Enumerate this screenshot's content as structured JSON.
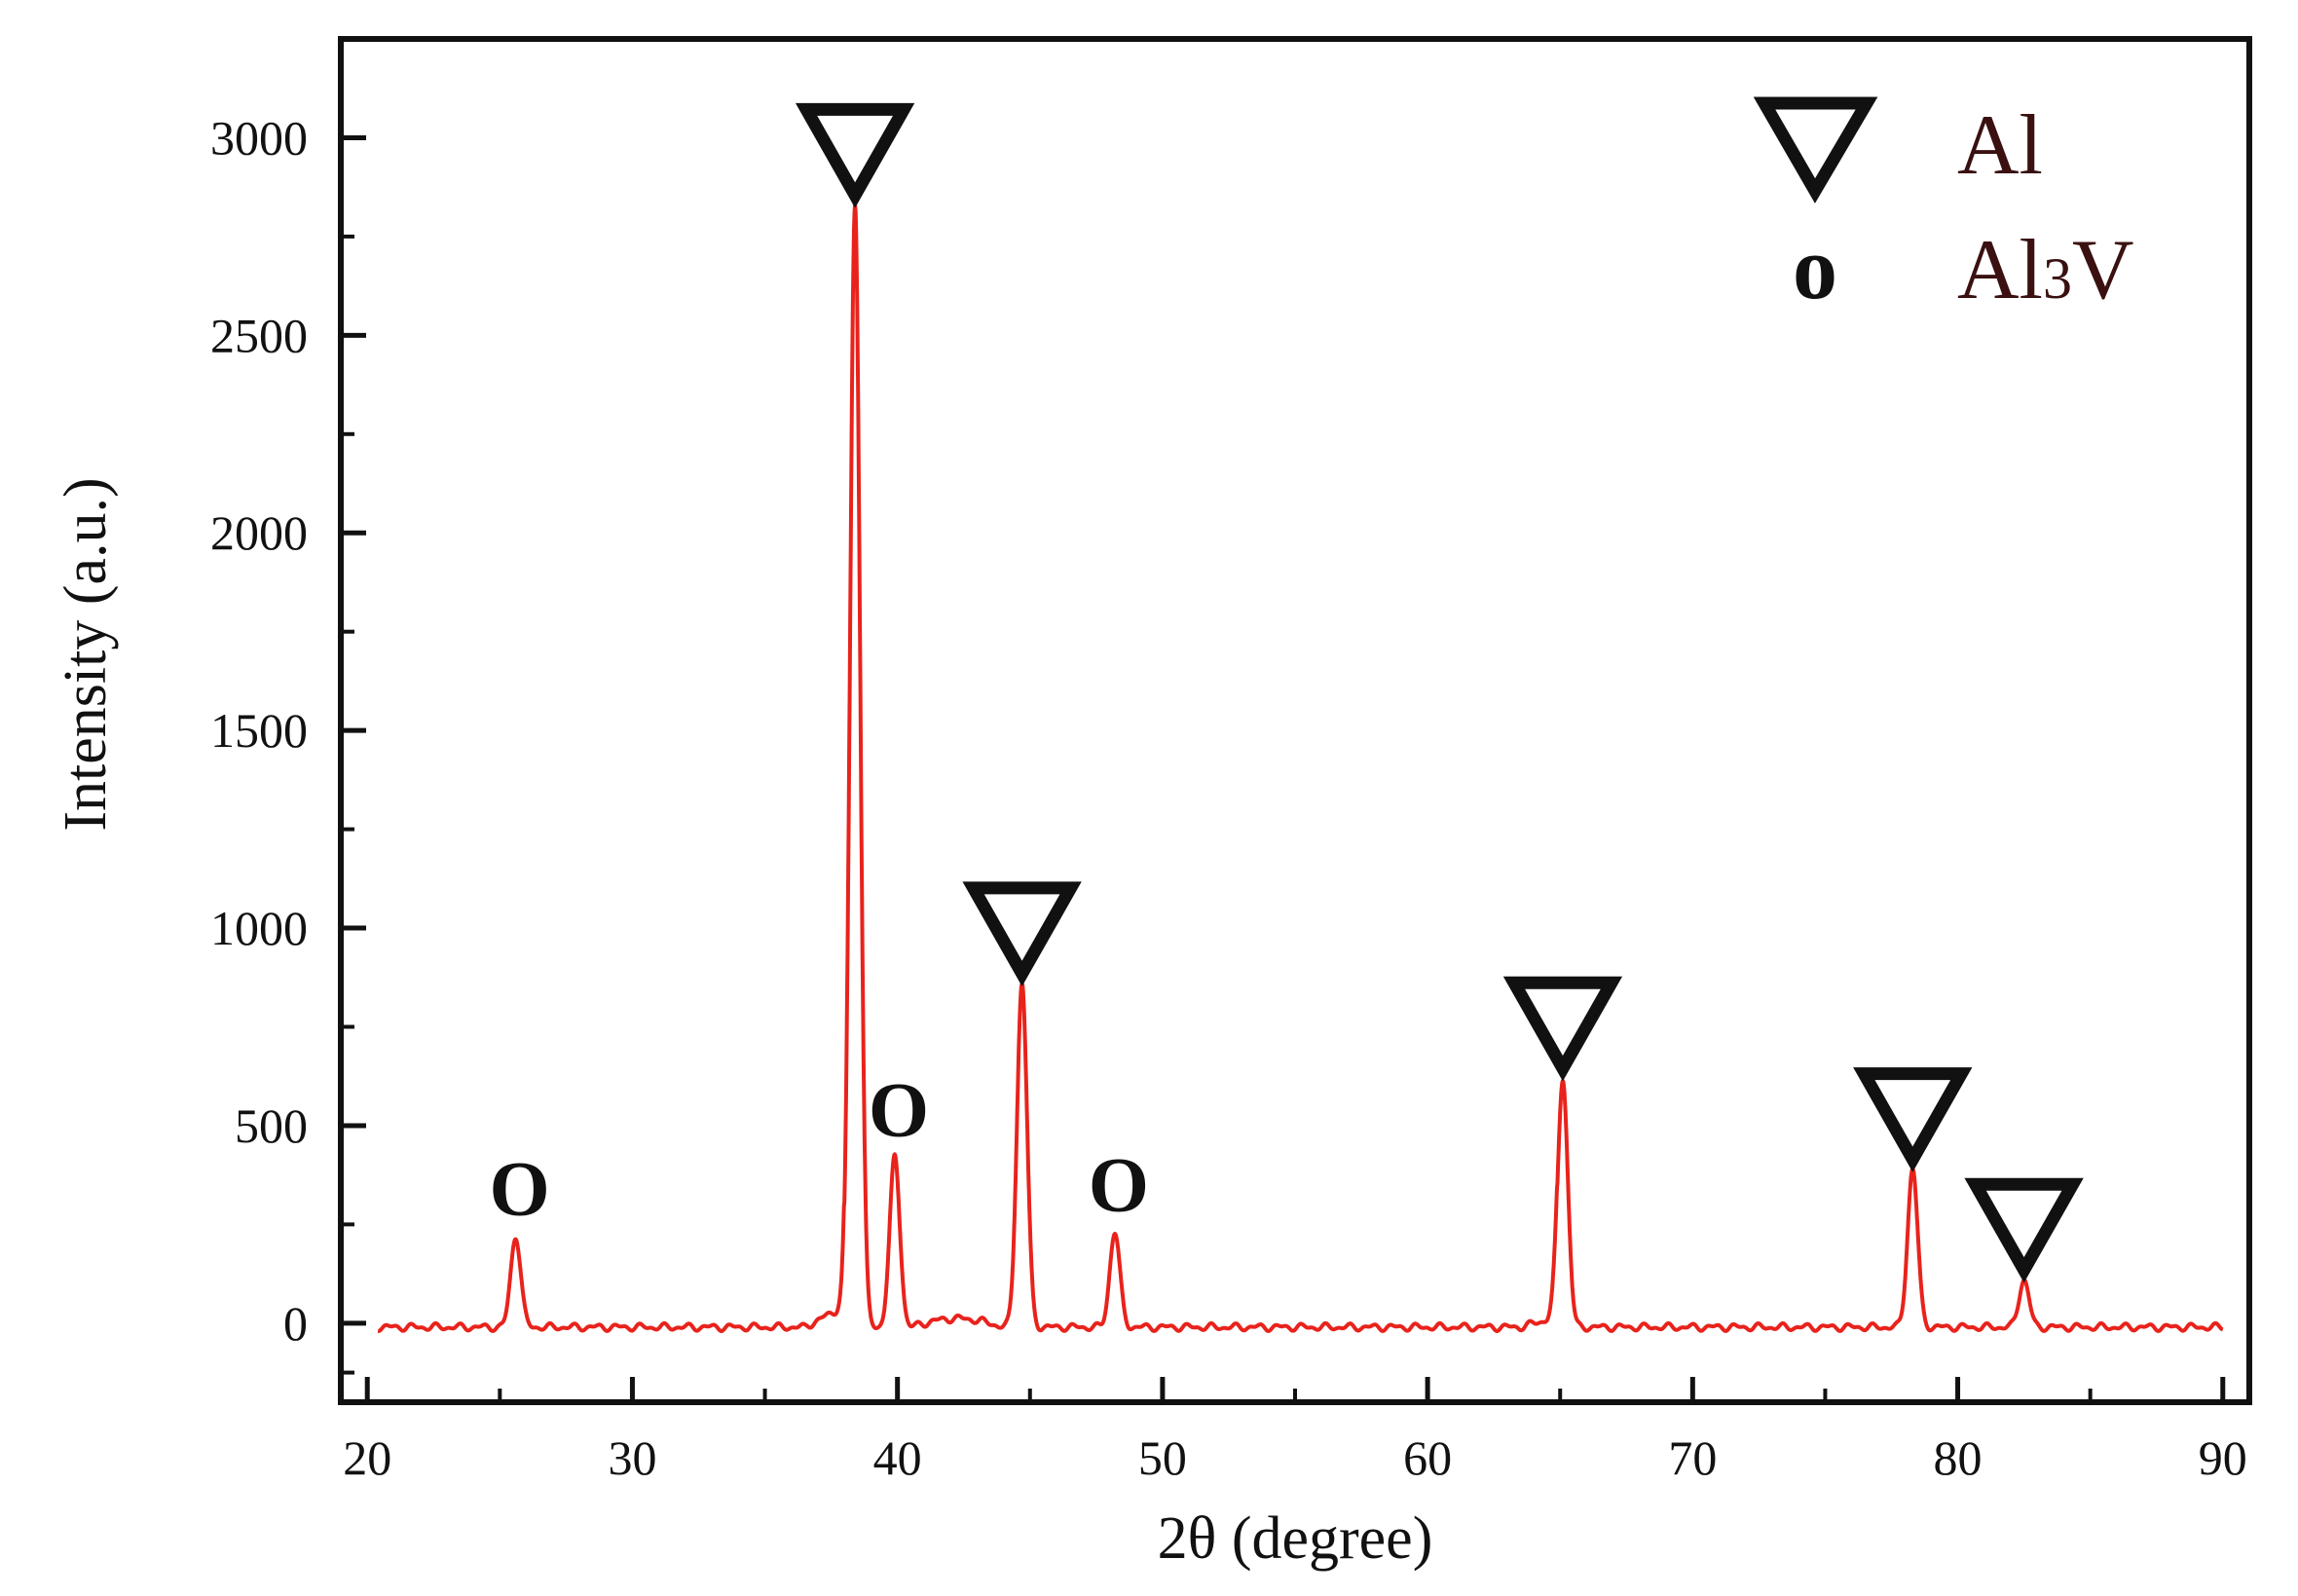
{
  "chart_data": {
    "type": "line",
    "title": "",
    "xlabel": "2θ (degree)",
    "ylabel": "Intensity (a.u.)",
    "xlim": [
      19,
      91
    ],
    "ylim": [
      -200,
      3250
    ],
    "xticks": [
      20,
      30,
      40,
      50,
      60,
      70,
      80,
      90
    ],
    "yticks": [
      0,
      500,
      1000,
      1500,
      2000,
      2500,
      3000
    ],
    "grid": false,
    "line_color": "#e8231c",
    "series": [
      {
        "name": "",
        "baseline": -10,
        "peaks": [
          {
            "x": 25.6,
            "y": 220
          },
          {
            "x": 38.4,
            "y": 2830
          },
          {
            "x": 39.9,
            "y": 420
          },
          {
            "x": 44.7,
            "y": 860
          },
          {
            "x": 48.2,
            "y": 230
          },
          {
            "x": 65.1,
            "y": 620
          },
          {
            "x": 78.3,
            "y": 390
          },
          {
            "x": 82.5,
            "y": 110
          }
        ]
      }
    ],
    "legend": {
      "position": "top-right",
      "entries": [
        {
          "symbol": "triangle-down-open",
          "label": "Al"
        },
        {
          "symbol": "circle-letter-o",
          "marker_text": "o",
          "label_main": "Al",
          "label_sub": "3",
          "label_tail": "V"
        }
      ]
    },
    "annotations": [
      {
        "x": 25.6,
        "y": 220,
        "phase": "Al3V",
        "marker_text": "O"
      },
      {
        "x": 38.4,
        "y": 2830,
        "phase": "Al"
      },
      {
        "x": 39.9,
        "y": 420,
        "phase": "Al3V",
        "marker_text": "O"
      },
      {
        "x": 44.7,
        "y": 860,
        "phase": "Al"
      },
      {
        "x": 48.2,
        "y": 230,
        "phase": "Al3V",
        "marker_text": "O"
      },
      {
        "x": 65.1,
        "y": 620,
        "phase": "Al"
      },
      {
        "x": 78.3,
        "y": 390,
        "phase": "Al"
      },
      {
        "x": 82.5,
        "y": 110,
        "phase": "Al"
      }
    ]
  }
}
